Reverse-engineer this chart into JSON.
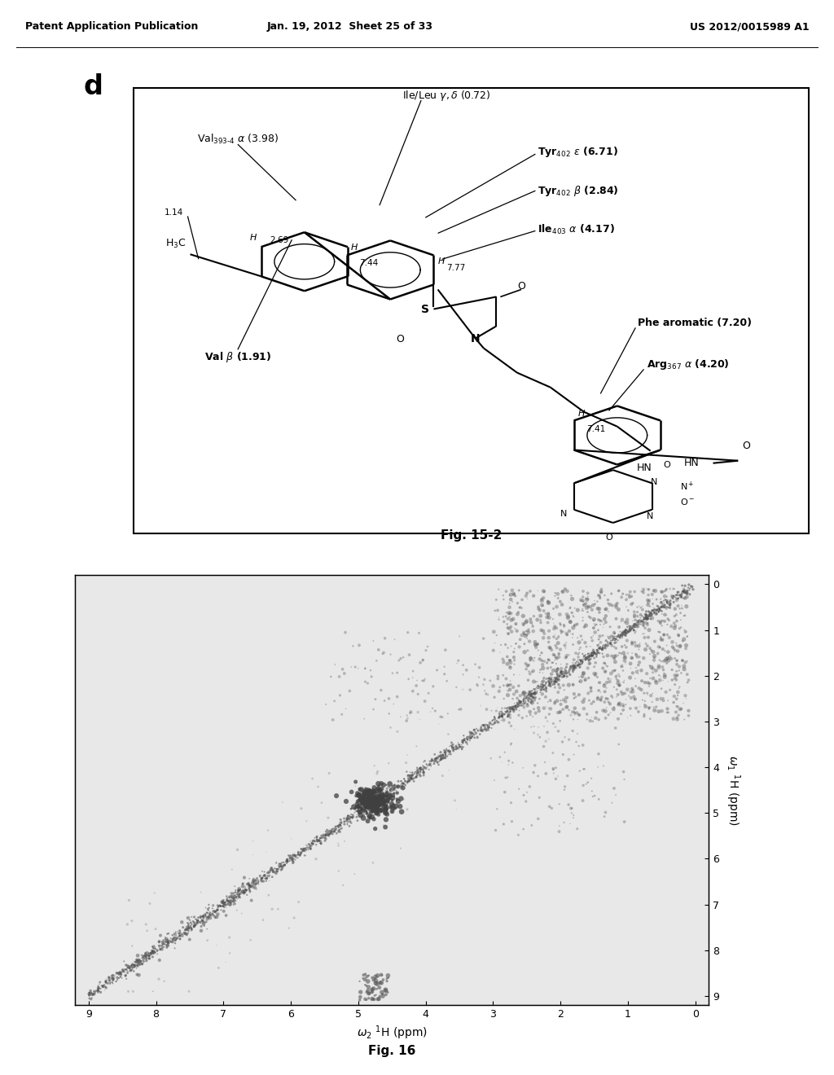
{
  "page_header_left": "Patent Application Publication",
  "page_header_center": "Jan. 19, 2012  Sheet 25 of 33",
  "page_header_right": "US 2012/0015989 A1",
  "panel_label": "d",
  "fig15_caption": "Fig. 15-2",
  "fig16_caption": "Fig. 16",
  "fig16_xlabel": "ω₂ ¹H (ppm)",
  "fig16_ylabel": "ω₁ ¹H (ppm)",
  "background_color": "#ffffff",
  "nmr_bg": "#f5f5f5",
  "header_fontsize": 9,
  "panel_label_fontsize": 24
}
